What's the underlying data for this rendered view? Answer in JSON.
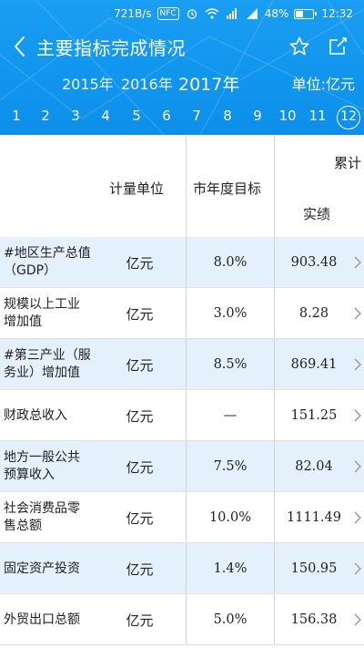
{
  "statusbar": {
    "speed": "721B/s",
    "nfc": "NFC",
    "battery_text": "48%",
    "battery_level": 0.48,
    "time": "12:32"
  },
  "nav": {
    "title": "主要指标完成情况",
    "back_icon": "chevron-left-icon",
    "star_icon": "star-icon",
    "share_icon": "share-icon"
  },
  "years": [
    "2015年",
    "2016年",
    "2017年"
  ],
  "selected_year": "2017年",
  "unit_label": "单位:亿元",
  "months": [
    "1",
    "2",
    "3",
    "4",
    "5",
    "6",
    "7",
    "8",
    "9",
    "10",
    "11",
    "12"
  ],
  "selected_month": "12",
  "table": {
    "headers": {
      "unit": "计量单位",
      "target": "市年度目标",
      "cumulative": "累计",
      "actual": "实绩"
    },
    "rows": [
      {
        "name": "#地区生产总值（GDP）",
        "unit": "亿元",
        "target": "8.0%",
        "actual": "903.48"
      },
      {
        "name": "规模以上工业增加值",
        "unit": "亿元",
        "target": "3.0%",
        "actual": "8.28"
      },
      {
        "name": "#第三产业（服务业）增加值",
        "unit": "亿元",
        "target": "8.5%",
        "actual": "869.41"
      },
      {
        "name": "财政总收入",
        "unit": "亿元",
        "target": "—",
        "actual": "151.25"
      },
      {
        "name": "地方一般公共预算收入",
        "unit": "亿元",
        "target": "7.5%",
        "actual": "82.04"
      },
      {
        "name": "社会消费品零售总额",
        "unit": "亿元",
        "target": "10.0%",
        "actual": "1111.49"
      },
      {
        "name": "固定资产投资",
        "unit": "亿元",
        "target": "1.4%",
        "actual": "150.95"
      },
      {
        "name": "外贸出口总额",
        "unit": "亿元",
        "target": "5.0%",
        "actual": "156.38"
      }
    ]
  },
  "colors": {
    "header_blue": "#1196ee",
    "row_shade": "#e4f0fb"
  }
}
